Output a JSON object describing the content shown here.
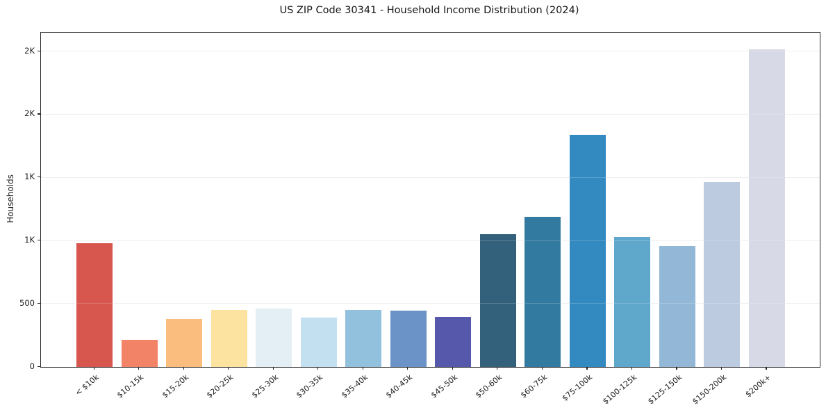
{
  "header": {
    "title": "US ZIP Code 30341 - Household Income Distribution (2024)"
  },
  "chart_data": {
    "type": "bar",
    "title": "US ZIP Code 30341 - Household Income Distribution (2024)",
    "xlabel": "",
    "ylabel": "Households",
    "categories": [
      "< $10k",
      "$10-15k",
      "$15-20k",
      "$20-25k",
      "$25-30k",
      "$30-35k",
      "$35-40k",
      "$40-45k",
      "$45-50k",
      "$50-60k",
      "$60-75k",
      "$75-100k",
      "$100-125k",
      "$125-150k",
      "$150-200k",
      "$200k+"
    ],
    "values": [
      980,
      215,
      380,
      450,
      465,
      390,
      450,
      445,
      395,
      1055,
      1190,
      1840,
      1030,
      960,
      1465,
      2520
    ],
    "bar_colors": [
      "#d7564e",
      "#f28367",
      "#fabd7e",
      "#fde3a0",
      "#e3eff4",
      "#c2e0ef",
      "#92c1dd",
      "#6b93c7",
      "#5659ab",
      "#33607a",
      "#337aa0",
      "#338ac0",
      "#5fa8cc",
      "#93b8d7",
      "#bccbe0",
      "#d8d9e6"
    ],
    "ylim": [
      0,
      2650
    ],
    "yticks": [
      {
        "value": 0,
        "label": "0"
      },
      {
        "value": 500,
        "label": "500"
      },
      {
        "value": 1000,
        "label": "1K"
      },
      {
        "value": 1500,
        "label": "1K"
      },
      {
        "value": 2000,
        "label": "2K"
      },
      {
        "value": 2500,
        "label": "2K"
      }
    ],
    "grid": "horizontal",
    "legend": "none",
    "x_tick_rotation_deg": 40
  },
  "colors": {
    "background": "#ffffff",
    "spine": "#262626",
    "grid": "#ebebeb",
    "text": "#1c1c1c"
  }
}
